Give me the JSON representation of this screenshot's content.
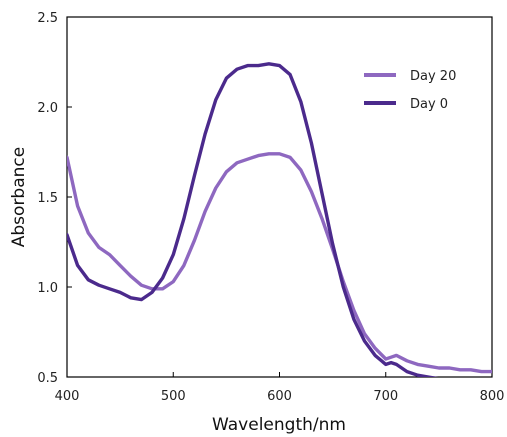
{
  "chart_data": {
    "type": "line",
    "xlabel": "Wavelength/nm",
    "ylabel": "Absorbance",
    "xlim": [
      400,
      800
    ],
    "ylim": [
      0.5,
      2.5
    ],
    "xticks": [
      "400",
      "500",
      "600",
      "700",
      "800"
    ],
    "yticks": [
      "0.5",
      "1.0",
      "1.5",
      "2.0",
      "2.5"
    ],
    "grid": false,
    "legend": "top-right",
    "series": [
      {
        "name": "Day 20",
        "color": "#8e68c0",
        "x": [
          400,
          410,
          420,
          430,
          440,
          450,
          460,
          470,
          480,
          490,
          500,
          510,
          520,
          530,
          540,
          550,
          560,
          570,
          580,
          590,
          600,
          610,
          620,
          630,
          640,
          650,
          660,
          670,
          680,
          690,
          700,
          705,
          710,
          720,
          730,
          740,
          750,
          760,
          770,
          780,
          790,
          800
        ],
        "y": [
          1.72,
          1.45,
          1.3,
          1.22,
          1.18,
          1.12,
          1.06,
          1.01,
          0.99,
          0.99,
          1.03,
          1.12,
          1.26,
          1.42,
          1.55,
          1.64,
          1.69,
          1.71,
          1.73,
          1.74,
          1.74,
          1.72,
          1.65,
          1.53,
          1.38,
          1.21,
          1.03,
          0.87,
          0.74,
          0.66,
          0.6,
          0.61,
          0.62,
          0.59,
          0.57,
          0.56,
          0.55,
          0.55,
          0.54,
          0.54,
          0.53,
          0.53
        ]
      },
      {
        "name": "Day 0",
        "color": "#4b2a8c",
        "x": [
          400,
          410,
          420,
          430,
          440,
          450,
          460,
          470,
          480,
          490,
          500,
          510,
          520,
          530,
          540,
          550,
          560,
          570,
          580,
          590,
          600,
          610,
          620,
          630,
          640,
          650,
          660,
          670,
          680,
          690,
          700,
          705,
          710,
          720,
          730,
          740,
          750,
          760,
          770,
          780,
          790,
          800
        ],
        "y": [
          1.29,
          1.12,
          1.04,
          1.01,
          0.99,
          0.97,
          0.94,
          0.93,
          0.97,
          1.05,
          1.18,
          1.38,
          1.62,
          1.85,
          2.04,
          2.16,
          2.21,
          2.23,
          2.23,
          2.24,
          2.23,
          2.18,
          2.03,
          1.8,
          1.52,
          1.24,
          1.0,
          0.82,
          0.7,
          0.62,
          0.57,
          0.58,
          0.57,
          0.53,
          0.51,
          0.5,
          0.49,
          0.48,
          0.48,
          0.48,
          0.48,
          0.48
        ]
      }
    ]
  }
}
